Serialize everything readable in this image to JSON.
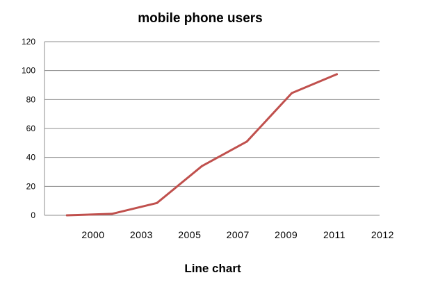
{
  "chart_data": {
    "type": "line",
    "title": "mobile phone users",
    "caption": "Line chart",
    "x_tick_labels": [
      "2000",
      "2003",
      "2005",
      "2007",
      "2009",
      "2011",
      "2012"
    ],
    "series": [
      {
        "color": "#c0504d",
        "points": [
          {
            "x": 1999.0,
            "y": 0
          },
          {
            "x": 2001.0,
            "y": 1
          },
          {
            "x": 2003.0,
            "y": 8.5
          },
          {
            "x": 2005.0,
            "y": 34
          },
          {
            "x": 2007.0,
            "y": 51
          },
          {
            "x": 2009.0,
            "y": 84.5
          },
          {
            "x": 2011.0,
            "y": 97.5
          }
        ]
      }
    ],
    "ylim": [
      0,
      120
    ],
    "y_ticks": [
      0,
      20,
      40,
      60,
      80,
      100,
      120
    ],
    "grid": "horizontal",
    "legend": "none"
  }
}
